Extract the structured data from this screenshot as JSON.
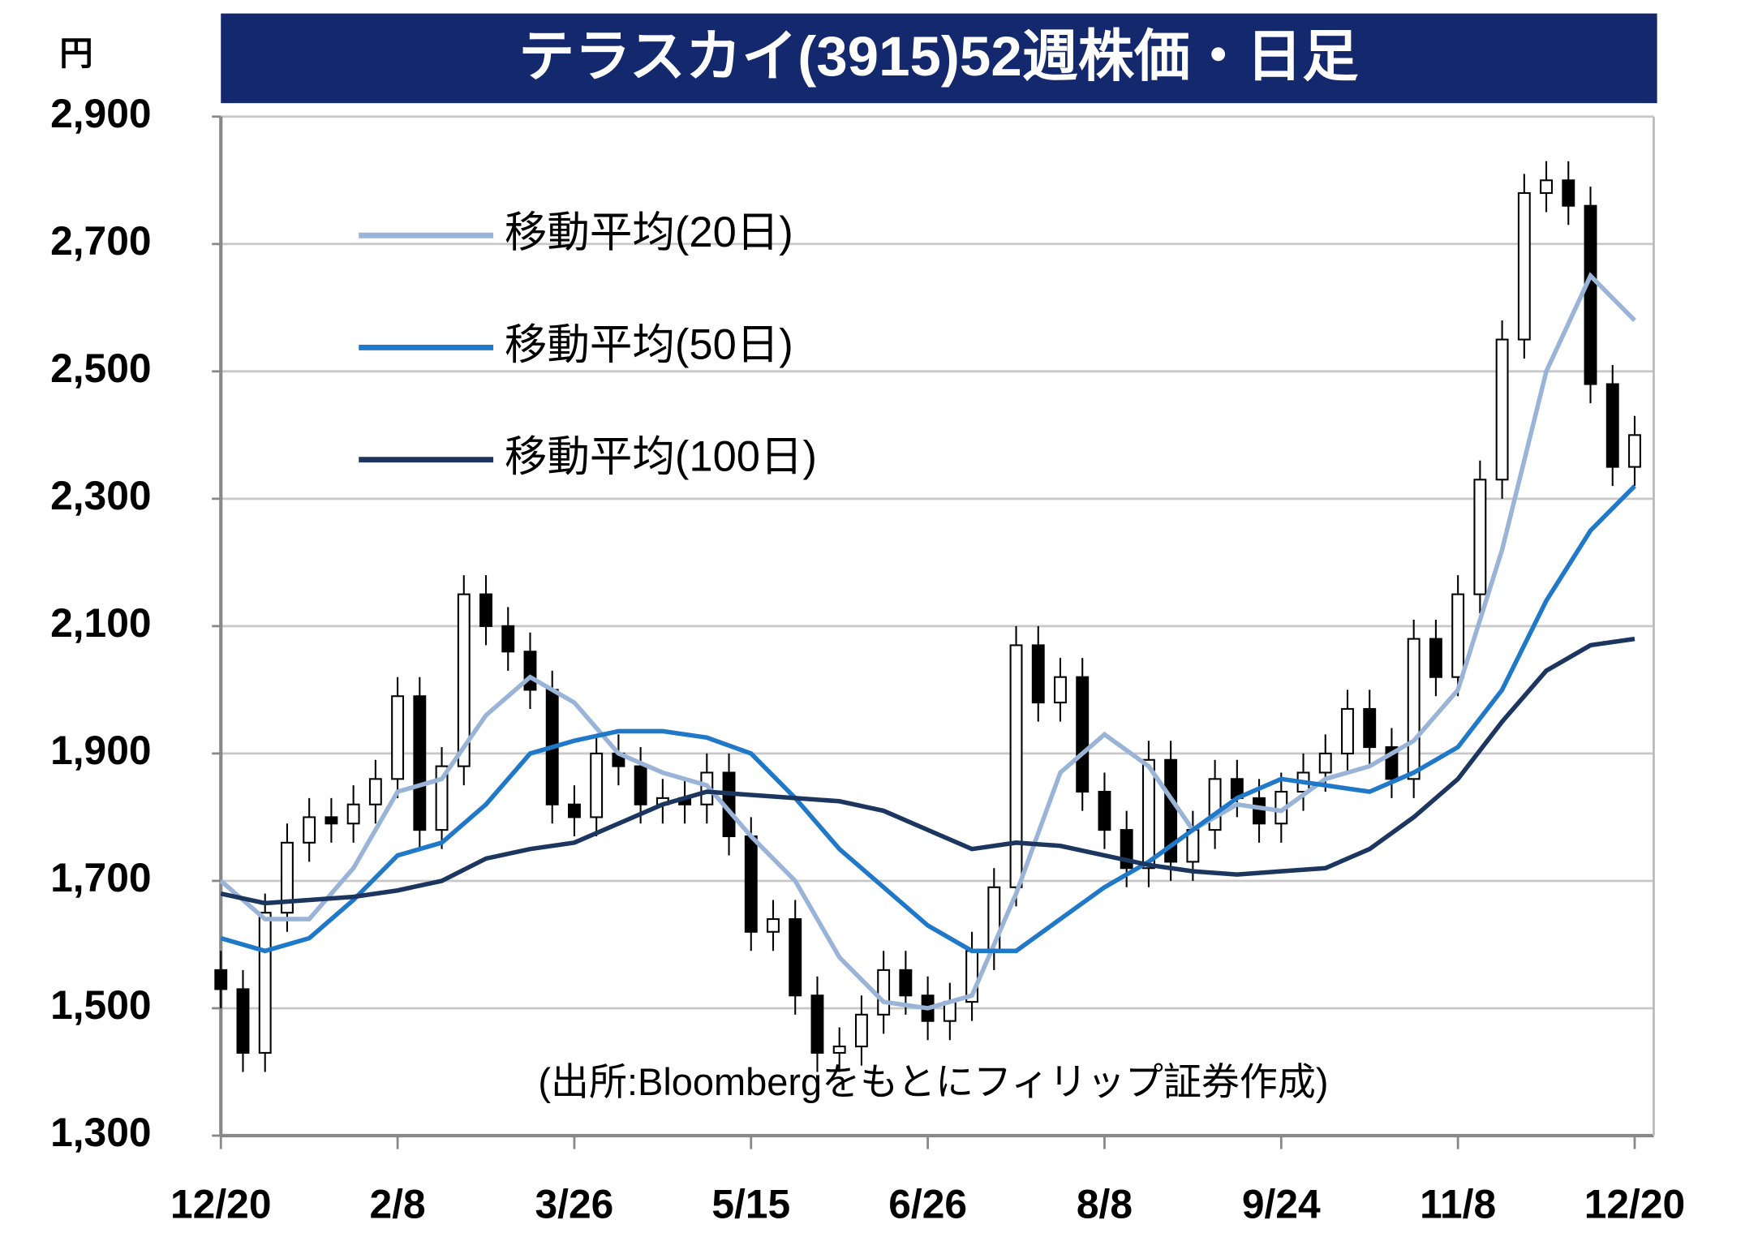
{
  "chart_data": {
    "type": "candlestick",
    "title": "テラスカイ(3915)52週株価・日足",
    "y_unit": "円",
    "source": "(出所:Bloombergをもとにフィリップ証券作成)",
    "xlim": [
      0,
      256
    ],
    "xticks": [
      {
        "value": 0,
        "label": "12/20"
      },
      {
        "value": 32,
        "label": "2/8"
      },
      {
        "value": 64,
        "label": "3/26"
      },
      {
        "value": 96,
        "label": "5/15"
      },
      {
        "value": 128,
        "label": "6/26"
      },
      {
        "value": 160,
        "label": "8/8"
      },
      {
        "value": 192,
        "label": "9/24"
      },
      {
        "value": 224,
        "label": "11/8"
      },
      {
        "value": 256,
        "label": "12/20"
      }
    ],
    "ylim": [
      1300,
      2900
    ],
    "yticks": [
      {
        "value": 1300,
        "label": "1,300"
      },
      {
        "value": 1500,
        "label": "1,500"
      },
      {
        "value": 1700,
        "label": "1,700"
      },
      {
        "value": 1900,
        "label": "1,900"
      },
      {
        "value": 2100,
        "label": "2,100"
      },
      {
        "value": 2300,
        "label": "2,300"
      },
      {
        "value": 2500,
        "label": "2,500"
      },
      {
        "value": 2700,
        "label": "2,700"
      },
      {
        "value": 2900,
        "label": "2,900"
      }
    ],
    "grid": true,
    "candles": {
      "x": [
        0,
        4,
        8,
        12,
        16,
        20,
        24,
        28,
        32,
        36,
        40,
        44,
        48,
        52,
        56,
        60,
        64,
        68,
        72,
        76,
        80,
        84,
        88,
        92,
        96,
        100,
        104,
        108,
        112,
        116,
        120,
        124,
        128,
        132,
        136,
        140,
        144,
        148,
        152,
        156,
        160,
        164,
        168,
        172,
        176,
        180,
        184,
        188,
        192,
        196,
        200,
        204,
        208,
        212,
        216,
        220,
        224,
        228,
        232,
        236,
        240,
        244,
        248,
        252,
        256
      ],
      "open": [
        1560,
        1530,
        1430,
        1650,
        1760,
        1800,
        1790,
        1820,
        1860,
        1990,
        1780,
        1880,
        2150,
        2100,
        2060,
        2000,
        1820,
        1800,
        1900,
        1880,
        1820,
        1830,
        1820,
        1870,
        1770,
        1620,
        1640,
        1520,
        1430,
        1440,
        1490,
        1560,
        1520,
        1480,
        1510,
        1590,
        1690,
        2070,
        1980,
        2020,
        1840,
        1780,
        1720,
        1890,
        1730,
        1780,
        1860,
        1830,
        1790,
        1840,
        1870,
        1900,
        1970,
        1910,
        1860,
        2080,
        2020,
        2150,
        2330,
        2550,
        2780,
        2800,
        2760,
        2480,
        2350
      ],
      "high": [
        1590,
        1560,
        1680,
        1790,
        1830,
        1830,
        1850,
        1890,
        2020,
        2020,
        1910,
        2180,
        2180,
        2130,
        2090,
        2030,
        1850,
        1930,
        1930,
        1910,
        1860,
        1860,
        1900,
        1900,
        1800,
        1670,
        1670,
        1550,
        1470,
        1520,
        1590,
        1590,
        1550,
        1540,
        1620,
        1720,
        2100,
        2100,
        2050,
        2050,
        1870,
        1810,
        1920,
        1920,
        1810,
        1890,
        1890,
        1860,
        1870,
        1900,
        1930,
        2000,
        2000,
        1940,
        2110,
        2110,
        2180,
        2360,
        2580,
        2810,
        2830,
        2830,
        2790,
        2510,
        2430
      ],
      "low": [
        1500,
        1400,
        1400,
        1620,
        1730,
        1760,
        1760,
        1790,
        1830,
        1750,
        1750,
        1850,
        2070,
        2030,
        1970,
        1790,
        1770,
        1770,
        1850,
        1790,
        1790,
        1790,
        1790,
        1740,
        1590,
        1590,
        1490,
        1400,
        1400,
        1410,
        1460,
        1490,
        1450,
        1450,
        1480,
        1560,
        1660,
        1950,
        1950,
        1810,
        1750,
        1690,
        1690,
        1700,
        1700,
        1750,
        1800,
        1760,
        1760,
        1810,
        1840,
        1870,
        1880,
        1830,
        1830,
        1990,
        1990,
        2120,
        2300,
        2520,
        2750,
        2730,
        2450,
        2320,
        2320
      ],
      "close": [
        1530,
        1430,
        1650,
        1760,
        1800,
        1790,
        1820,
        1860,
        1990,
        1780,
        1880,
        2150,
        2100,
        2060,
        2000,
        1820,
        1800,
        1900,
        1880,
        1820,
        1830,
        1820,
        1870,
        1770,
        1620,
        1640,
        1520,
        1430,
        1440,
        1490,
        1560,
        1520,
        1480,
        1510,
        1590,
        1690,
        2070,
        1980,
        2020,
        1840,
        1780,
        1720,
        1890,
        1730,
        1780,
        1860,
        1830,
        1790,
        1840,
        1870,
        1900,
        1970,
        1910,
        1860,
        2080,
        2020,
        2150,
        2330,
        2550,
        2780,
        2800,
        2760,
        2480,
        2350,
        2400
      ]
    },
    "series": [
      {
        "name": "移動平均(20日)",
        "color": "#9ab4d8",
        "x": [
          0,
          8,
          16,
          24,
          32,
          40,
          48,
          56,
          64,
          72,
          80,
          88,
          96,
          104,
          112,
          120,
          128,
          136,
          144,
          152,
          160,
          168,
          176,
          184,
          192,
          200,
          208,
          216,
          224,
          232,
          240,
          248,
          256
        ],
        "values": [
          1700,
          1640,
          1640,
          1720,
          1840,
          1860,
          1960,
          2020,
          1980,
          1900,
          1870,
          1850,
          1770,
          1700,
          1580,
          1510,
          1500,
          1520,
          1680,
          1870,
          1930,
          1880,
          1780,
          1820,
          1810,
          1860,
          1880,
          1920,
          2000,
          2220,
          2500,
          2650,
          2580
        ]
      },
      {
        "name": "移動平均(50日)",
        "color": "#1f78c8",
        "x": [
          0,
          8,
          16,
          24,
          32,
          40,
          48,
          56,
          64,
          72,
          80,
          88,
          96,
          104,
          112,
          120,
          128,
          136,
          144,
          152,
          160,
          168,
          176,
          184,
          192,
          200,
          208,
          216,
          224,
          232,
          240,
          248,
          256
        ],
        "values": [
          1610,
          1590,
          1610,
          1670,
          1740,
          1760,
          1820,
          1900,
          1920,
          1935,
          1935,
          1925,
          1900,
          1830,
          1750,
          1690,
          1630,
          1590,
          1590,
          1640,
          1690,
          1730,
          1780,
          1830,
          1860,
          1850,
          1840,
          1870,
          1910,
          2000,
          2140,
          2250,
          2320
        ]
      },
      {
        "name": "移動平均(100日)",
        "color": "#1c3660",
        "x": [
          0,
          8,
          16,
          24,
          32,
          40,
          48,
          56,
          64,
          72,
          80,
          88,
          96,
          104,
          112,
          120,
          128,
          136,
          144,
          152,
          160,
          168,
          176,
          184,
          192,
          200,
          208,
          216,
          224,
          232,
          240,
          248,
          256
        ],
        "values": [
          1680,
          1665,
          1670,
          1675,
          1685,
          1700,
          1735,
          1750,
          1760,
          1790,
          1820,
          1840,
          1835,
          1830,
          1825,
          1810,
          1780,
          1750,
          1760,
          1755,
          1740,
          1725,
          1715,
          1710,
          1715,
          1720,
          1750,
          1800,
          1860,
          1950,
          2030,
          2070,
          2080
        ]
      }
    ]
  }
}
